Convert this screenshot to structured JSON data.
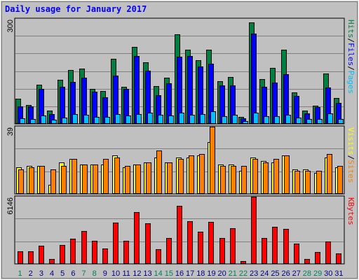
{
  "chart_data": {
    "type": "bar",
    "title": "Daily usage for January 2017",
    "categories": [
      "1",
      "2",
      "3",
      "4",
      "5",
      "6",
      "7",
      "8",
      "9",
      "10",
      "11",
      "12",
      "13",
      "14",
      "15",
      "16",
      "17",
      "18",
      "19",
      "20",
      "21",
      "22",
      "23",
      "24",
      "25",
      "26",
      "27",
      "28",
      "29",
      "30",
      "31"
    ],
    "weekend_days": [
      "1",
      "7",
      "8",
      "14",
      "15",
      "21",
      "22",
      "28",
      "29"
    ],
    "colors": {
      "pages": "#00c0ff",
      "files": "#0000ff",
      "hits": "#008040",
      "sites": "#ff8000",
      "visits": "#ffff00",
      "kbytes": "#ff0000",
      "title": "#0000ff",
      "weekday_label": "#000080",
      "weekend_label": "#00805c",
      "panel_bg": "#c0c0c0",
      "grid": "#808080"
    },
    "panels": [
      {
        "id": "hits",
        "ymax_label": "300",
        "ylim": [
          0,
          300
        ],
        "legend": [
          {
            "text": "Pages",
            "color": "#00c0ff"
          },
          {
            "text": "Files",
            "color": "#0000ff"
          },
          {
            "text": "Hits",
            "color": "#008040"
          }
        ],
        "series": [
          {
            "name": "Hits",
            "color": "#008040",
            "values": [
              70,
              52,
              110,
              37,
              124,
              153,
              158,
              99,
              92,
              186,
              105,
              220,
              176,
              107,
              130,
              256,
              211,
              181,
              212,
              121,
              133,
              18,
              290,
              126,
              159,
              211,
              88,
              37,
              50,
              142,
              72
            ]
          },
          {
            "name": "Files",
            "color": "#0000ff",
            "values": [
              48,
              48,
              98,
              26,
              104,
              118,
              130,
              91,
              74,
              136,
              98,
              194,
              151,
              81,
              115,
              191,
              194,
              164,
              171,
              109,
              108,
              15,
              257,
              104,
              116,
              140,
              78,
              29,
              46,
              103,
              59
            ]
          },
          {
            "name": "Pages",
            "color": "#00c0ff",
            "values": [
              15,
              12,
              23,
              10,
              17,
              26,
              24,
              19,
              19,
              26,
              22,
              26,
              30,
              24,
              22,
              30,
              25,
              27,
              35,
              21,
              25,
              6,
              31,
              21,
              21,
              24,
              16,
              13,
              13,
              29,
              13
            ]
          }
        ]
      },
      {
        "id": "sites",
        "ymax_label": "39",
        "ylim": [
          0,
          39
        ],
        "legend": [
          {
            "text": "Sites",
            "color": "#ff8000"
          },
          {
            "text": "Visits",
            "color": "#ffff00"
          }
        ],
        "series": [
          {
            "name": "Visits",
            "color": "#ffff00",
            "values": [
              15,
              16,
              16,
              5,
              18,
              20,
              17,
              17,
              17,
              22,
              15,
              17,
              18,
              21,
              18,
              21,
              21,
              22,
              30,
              17,
              17,
              13,
              21,
              19,
              18,
              22,
              14,
              14,
              12,
              21,
              15
            ]
          },
          {
            "name": "Sites",
            "color": "#ff8000",
            "values": [
              14,
              15,
              16,
              14,
              16,
              20,
              17,
              17,
              20,
              21,
              16,
              17,
              18,
              25,
              18,
              20,
              22,
              23,
              39,
              16,
              16,
              16,
              20,
              18,
              20,
              22,
              13,
              13,
              13,
              23,
              16
            ]
          }
        ]
      },
      {
        "id": "kbytes",
        "ymax_label": "6146",
        "ylim": [
          0,
          6146
        ],
        "legend": [
          {
            "text": "KBytes",
            "color": "#ff0000"
          }
        ],
        "series": [
          {
            "name": "KBytes",
            "color": "#ff0000",
            "values": [
              1070,
              1070,
              1640,
              400,
              1650,
              2260,
              2980,
              2060,
              1340,
              3730,
              2040,
              4720,
              3660,
              1290,
              2300,
              5330,
              3890,
              2920,
              3820,
              2330,
              3250,
              210,
              6146,
              2330,
              3370,
              3160,
              1780,
              360,
              1010,
              2030,
              900
            ]
          }
        ]
      }
    ]
  }
}
